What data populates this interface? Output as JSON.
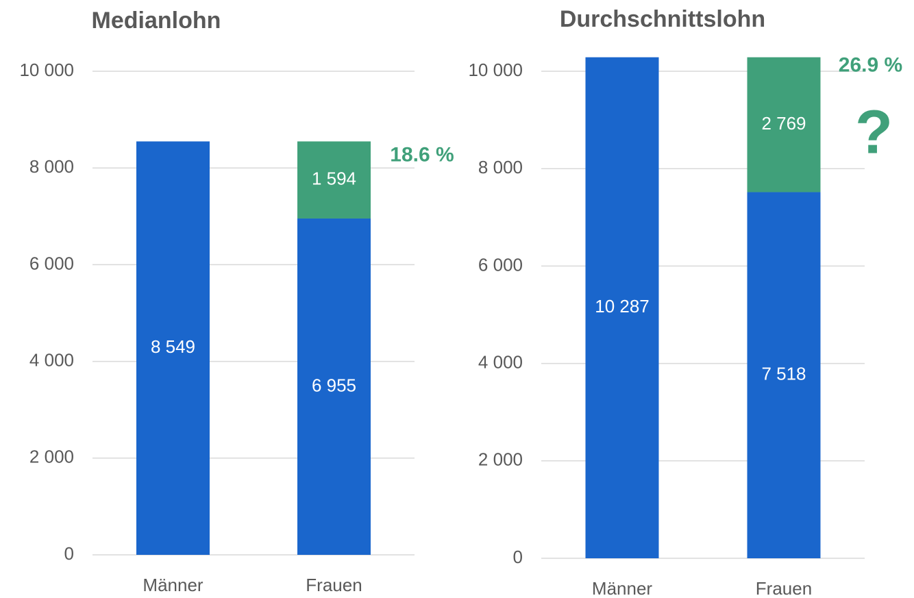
{
  "chart_data": [
    {
      "type": "bar",
      "stacked": true,
      "title": "Medianlohn",
      "categories": [
        "Männer",
        "Frauen"
      ],
      "series": [
        {
          "color": "#1a66cc",
          "values": [
            8549,
            6955
          ],
          "value_labels": [
            "8 549",
            "6 955"
          ]
        },
        {
          "color": "#40a07a",
          "values": [
            null,
            1594
          ],
          "value_labels": [
            null,
            "1 594"
          ]
        }
      ],
      "annotations": [
        "18.6 %"
      ],
      "ylim": [
        0,
        10000
      ],
      "yticks": [
        0,
        {
          "value": 2000,
          "label": "2 000"
        },
        {
          "value": 4000,
          "label": "4 000"
        },
        {
          "value": 6000,
          "label": "6 000"
        },
        {
          "value": 8000,
          "label": "8 000"
        },
        {
          "value": 10000,
          "label": "10 000"
        }
      ],
      "grid": true
    },
    {
      "type": "bar",
      "stacked": true,
      "title": "Durchschnittslohn",
      "categories": [
        "Männer",
        "Frauen"
      ],
      "series": [
        {
          "color": "#1a66cc",
          "values": [
            10287,
            7518
          ],
          "value_labels": [
            "10 287",
            "7 518"
          ]
        },
        {
          "color": "#40a07a",
          "values": [
            null,
            2769
          ],
          "value_labels": [
            null,
            "2 769"
          ]
        }
      ],
      "annotations": [
        "26.9 %",
        "?"
      ],
      "ylim": [
        0,
        10000
      ],
      "yticks": [
        0,
        {
          "value": 2000,
          "label": "2 000"
        },
        {
          "value": 4000,
          "label": "4 000"
        },
        {
          "value": 6000,
          "label": "6 000"
        },
        {
          "value": 8000,
          "label": "8 000"
        },
        {
          "value": 10000,
          "label": "10 000"
        }
      ],
      "grid": true
    }
  ]
}
